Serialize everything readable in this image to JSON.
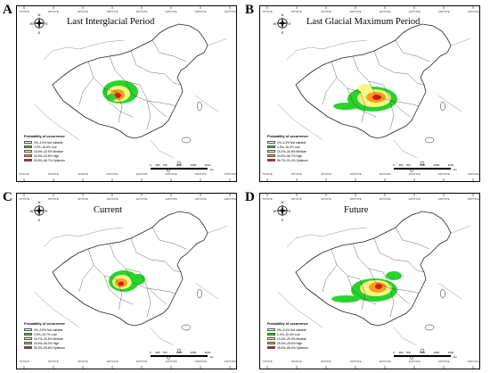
{
  "coordinates": [
    "70°0'0\"E",
    "80°0'0\"E",
    "90°0'0\"E",
    "100°0'0\"E",
    "110°0'0\"E",
    "120°0'0\"E",
    "130°0'0\"E",
    "140°0'0\"E"
  ],
  "compass": {
    "n": "N",
    "s": "S",
    "e": "E",
    "w": "W"
  },
  "scale": {
    "labels": [
      "0",
      "380",
      "760",
      "1520",
      "2280",
      "3040"
    ],
    "unit": "km"
  },
  "legend_title": "Probability of occurrence",
  "class_colors": {
    "not_suitable": "#ffffff",
    "low": "#29d32d",
    "medium": "#fbf582",
    "high": "#f5a11a",
    "optimum": "#d7191c"
  },
  "panels": [
    {
      "letter": "A",
      "title": "Last Interglacial Period",
      "legend": [
        "0%–4.0%  Not suitable",
        "4.0%–15.6%  Low",
        "15.6%–32.5%  Medium",
        "32.5%–53.5%  High",
        "53.5%–66.7%  Optimum"
      ]
    },
    {
      "letter": "B",
      "title": "Last Glacial Maximum Period",
      "legend": [
        "0%–4.3%  Not suitable",
        "4.3%–16.3%  Low",
        "16.3%–34.8%  Medium",
        "34.8%–56.7%  High",
        "56.7%–91.4%  Optimum"
      ]
    },
    {
      "letter": "C",
      "title": "Current",
      "legend": [
        "0%–3.5%  Not suitable",
        "3.5%–15.7%  Low",
        "15.7%–30.6%  Medium",
        "30.6%–55.3%  High",
        "55.3%–89.8%  Optimum"
      ]
    },
    {
      "letter": "D",
      "title": "Future",
      "legend": [
        "0%–2.4%  Not suitable",
        "2.4%–10.4%  Low",
        "10.4%–25.3%  Medium",
        "25.3%–49.6%  High",
        "49.6%–88.4%  Optimum"
      ]
    }
  ]
}
